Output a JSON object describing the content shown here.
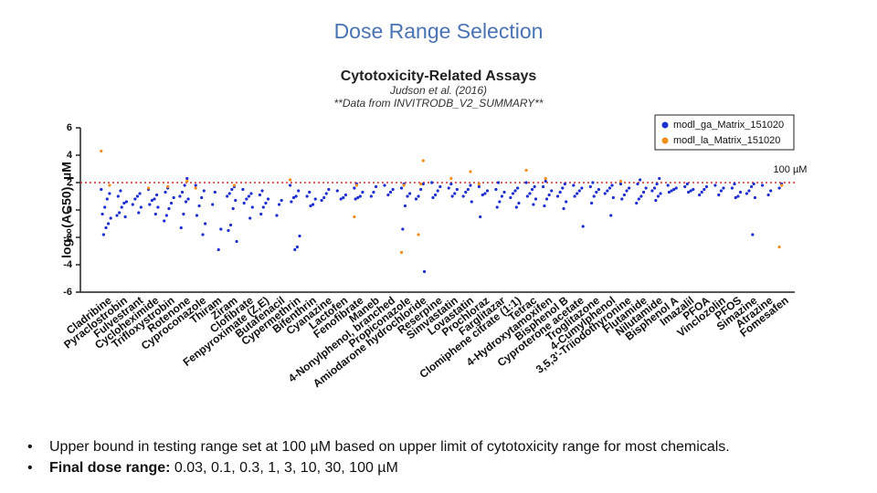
{
  "slide_title": "Dose Range Selection",
  "bullets": [
    {
      "text": "Upper bound in testing range set at 100 µM based on upper limit of cytotoxicity range for most chemicals."
    },
    {
      "bold": "Final dose range:",
      "text": " 0.03, 0.1, 0.3, 1, 3, 10, 30, 100 µM"
    }
  ],
  "chart_data": {
    "type": "strip",
    "title": "Cytotoxicity-Related Assays",
    "subtitle": "Judson et al. (2016)",
    "note": "**Data from INVITRODB_V2_SUMMARY**",
    "y_label": "log₁₀(AC50), µM",
    "ylim": [
      -6,
      6
    ],
    "yticks": [
      -6,
      -4,
      -2,
      0,
      2,
      4,
      6
    ],
    "legend": "top-right",
    "reference_line": {
      "value": 2,
      "label": "100 µM",
      "color": "#d62728"
    },
    "categories": [
      "Cladribine",
      "Pyraclostrobin",
      "Fulvestrant",
      "Cycloheximide",
      "Trifloxystrobin",
      "Rotenone",
      "Cyproconazole",
      "Thiram",
      "Ziram",
      "Clofibrate",
      "Fenpyroximate (Z,E)",
      "Butafenacil",
      "Cypermethrin",
      "Bifenthrin",
      "Cyanazine",
      "Lactofen",
      "Fenofibrate",
      "Maneb",
      "4-Nonylphenol, branched",
      "Propiconazole",
      "Amiodarone hydrochloride",
      "Reserpine",
      "Simvastatin",
      "Lovastatin",
      "Prochloraz",
      "Farglitazar",
      "Clomiphene citrate (1:1)",
      "Tetrac",
      "4-Hydroxytamoxifen",
      "Bisphenol B",
      "Cyproterone acetate",
      "Troglitazone",
      "4-Cumylphenol",
      "3,5,3'-Triiodothyronine",
      "Flutamide",
      "Nilutamide",
      "Bisphenol A",
      "Imazalil",
      "PFOA",
      "Vinclozolin",
      "PFOS",
      "Simazine",
      "Atrazine",
      "Fomesafen"
    ],
    "series": [
      {
        "name": "modl_ga_Matrix_151020",
        "color": "#1f2fcf",
        "values": [
          [
            1.5,
            1.2,
            0.8,
            0.2,
            -0.3,
            -0.6,
            -1,
            -1.3,
            -1.8
          ],
          [
            1.4,
            1,
            0.6,
            0.5,
            0.2,
            -0.2,
            -0.4,
            -0.5
          ],
          [
            1.2,
            1,
            0.8,
            0.4,
            0.2,
            -0.2
          ],
          [
            1.5,
            1.1,
            0.8,
            0.7,
            0.4,
            0.2,
            -0.3
          ],
          [
            1.6,
            1.3,
            0.9,
            0.5,
            0.1,
            -0.4,
            -0.8
          ],
          [
            2.3,
            1.8,
            1.3,
            1,
            0.8,
            0.6,
            -0.3,
            -1.3
          ],
          [
            1.8,
            1.4,
            0.9,
            0.3,
            -0.4,
            -1,
            -1.8
          ],
          [
            1.3,
            0.4,
            -1.4,
            -2.9
          ],
          [
            1.7,
            1.5,
            1.2,
            1,
            0.7,
            0.1,
            -1.1,
            -1.5,
            -2.3
          ],
          [
            1.5,
            1.2,
            1,
            0.8,
            0.5,
            0.2,
            -0.6
          ],
          [
            1.4,
            1.1,
            0.8,
            0.5,
            0.2,
            -0.3
          ],
          [
            0.7,
            0.4,
            -0.4
          ],
          [
            1.8,
            1.4,
            1,
            0.9,
            0.6,
            -1.9,
            -2.7,
            -2.9
          ],
          [
            1.3,
            1,
            0.8,
            0.4,
            0.3
          ],
          [
            1.5,
            1.2,
            0.9,
            0.7
          ],
          [
            1.4,
            1.1,
            0.9,
            0.8
          ],
          [
            1.9,
            1.6,
            1.3,
            1,
            0.9,
            0.8
          ],
          [
            1.7,
            1.3,
            1
          ],
          [
            1.8,
            1.5,
            1.3,
            1.1
          ],
          [
            1.9,
            1.6,
            1.2,
            1,
            0.3,
            -1.4
          ],
          [
            1.9,
            1.5,
            1,
            0.8,
            -4.5
          ],
          [
            2,
            1.7,
            1.4,
            1.1,
            0.9
          ],
          [
            1.9,
            1.6,
            1.5,
            1.2,
            1
          ],
          [
            1.8,
            1.5,
            1.3,
            1,
            0.6
          ],
          [
            1.7,
            1.4,
            1.2,
            1.1,
            -0.5
          ],
          [
            2,
            1.5,
            1.3,
            1,
            0.6,
            0.2
          ],
          [
            1.6,
            1.4,
            1.2,
            0.9,
            0.5,
            0.2
          ],
          [
            2,
            1.7,
            1.5,
            1.2,
            1,
            0.8,
            0.4
          ],
          [
            2.1,
            1.7,
            1.4,
            1.1,
            0.8,
            0.3
          ],
          [
            1.9,
            1.6,
            1.3,
            1,
            0.6,
            0.1
          ],
          [
            1.8,
            1.6,
            1.4,
            1.2,
            1,
            -1.2
          ],
          [
            2,
            1.7,
            1.5,
            1.3,
            1,
            0.5
          ],
          [
            1.8,
            1.6,
            1.4,
            1.2,
            0.9,
            -0.4
          ],
          [
            1.9,
            1.6,
            1.4,
            1.1,
            0.8
          ],
          [
            2.2,
            1.9,
            1.6,
            1.3,
            1,
            0.8,
            0.5
          ],
          [
            2.3,
            1.9,
            1.6,
            1.4,
            1.2,
            1,
            0.7
          ],
          [
            1.8,
            1.6,
            1.5,
            1.4,
            1.3
          ],
          [
            1.9,
            1.7,
            1.5,
            1.4,
            1.3
          ],
          [
            1.7,
            1.5,
            1.3,
            1.1
          ],
          [
            1.8,
            1.6,
            1.4,
            1.1
          ],
          [
            1.9,
            1.6,
            1.3,
            1,
            0.9
          ],
          [
            1.9,
            1.7,
            1.4,
            1.2,
            0.9,
            -1.8
          ],
          [
            1.8,
            1.4,
            1.1
          ],
          [
            1.9,
            1.6
          ]
        ]
      },
      {
        "name": "modl_la_Matrix_151020",
        "color": "#f28e1c",
        "values": [
          [
            4.3,
            1.8
          ],
          [],
          [],
          [
            1.6
          ],
          [
            1.7
          ],
          [
            2.1
          ],
          [
            1.6
          ],
          [],
          [
            1.8
          ],
          [],
          [],
          [],
          [
            2.2
          ],
          [],
          [],
          [],
          [
            1.8,
            -0.5
          ],
          [],
          [],
          [
            1.8,
            -3.1
          ],
          [
            3.6,
            1.9,
            -1.8
          ],
          [],
          [
            2.3
          ],
          [
            2.8
          ],
          [
            1.9
          ],
          [],
          [],
          [
            2.9
          ],
          [
            2.3
          ],
          [],
          [],
          [],
          [],
          [
            2.1
          ],
          [],
          [],
          [],
          [],
          [],
          [],
          [],
          [],
          [],
          [
            1.8,
            -2.7
          ]
        ]
      }
    ]
  }
}
